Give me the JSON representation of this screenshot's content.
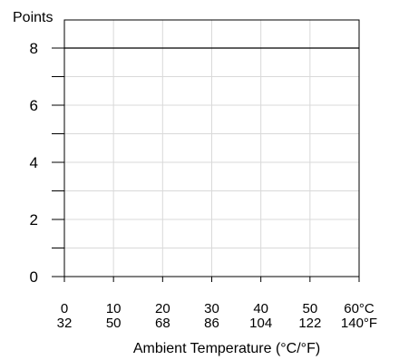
{
  "chart_data": {
    "type": "line",
    "title": "",
    "ylabel": "Points",
    "xlabel": "Ambient Temperature (°C/°F)",
    "x_unit_primary": "°C",
    "x_unit_secondary": "°F",
    "xlim": [
      0,
      60
    ],
    "ylim": [
      0,
      8
    ],
    "x_ticks_c": [
      "0",
      "10",
      "20",
      "30",
      "40",
      "50",
      "60"
    ],
    "x_ticks_f": [
      "32",
      "50",
      "68",
      "86",
      "104",
      "122",
      "140"
    ],
    "y_ticks": [
      "0",
      "2",
      "4",
      "6",
      "8"
    ],
    "y_minor_ticks": [
      1,
      3,
      5,
      7
    ],
    "grid": true,
    "series": [
      {
        "x": [
          0,
          60
        ],
        "y": [
          8,
          8
        ],
        "color": "#000000"
      }
    ]
  }
}
